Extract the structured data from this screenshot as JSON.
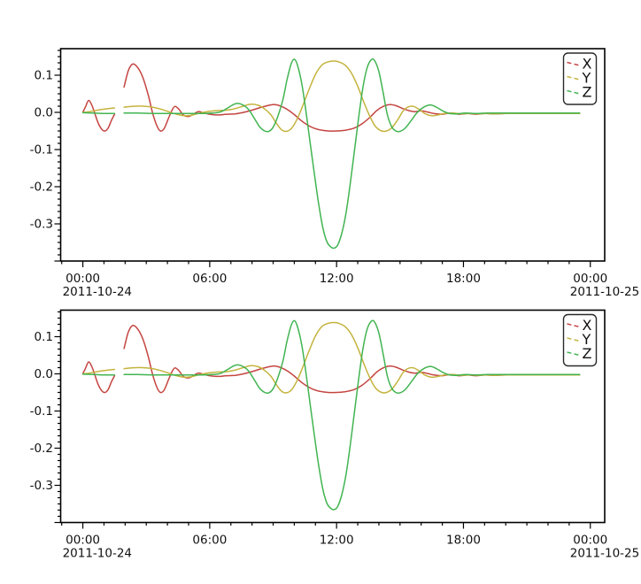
{
  "figure": {
    "background": "#ffffff",
    "frame_color": "#000000",
    "tick_color": "#000000"
  },
  "chart_data": {
    "type": "line",
    "title": "",
    "grid": false,
    "panel_count": 2,
    "panels": [
      {
        "id": "top-panel"
      },
      {
        "id": "bottom-panel",
        "note": "identical data to top panel"
      }
    ],
    "legend": {
      "position": "upper right",
      "entries": [
        {
          "label": "X",
          "color": "#c44440"
        },
        {
          "label": "Y",
          "color": "#c4b33d"
        },
        {
          "label": "Z",
          "color": "#41b451"
        }
      ]
    },
    "x_axis": {
      "unit": "hours since 2011-10-24 00:00",
      "xlim_hours": [
        -1.05,
        24.68
      ],
      "minor_tick_every_hours": 1,
      "major_ticks": [
        {
          "hour": 0,
          "label": "00:00",
          "date": "2011-10-24"
        },
        {
          "hour": 6,
          "label": "06:00"
        },
        {
          "hour": 12,
          "label": "12:00"
        },
        {
          "hour": 18,
          "label": "18:00"
        },
        {
          "hour": 24,
          "label": "00:00",
          "date": "2011-10-25"
        }
      ]
    },
    "y_axis": {
      "ylim": [
        -0.4,
        0.1714
      ],
      "minor_divisions_per_major": 6,
      "major_ticks": [
        {
          "value": 0.1,
          "label": "0.1"
        },
        {
          "value": 0.0,
          "label": "0.0"
        },
        {
          "value": -0.1,
          "label": "-0.1"
        },
        {
          "value": -0.2,
          "label": "-0.2"
        },
        {
          "value": -0.3,
          "label": "-0.3"
        }
      ]
    },
    "data_gap_hours": [
      1.5,
      1.95
    ],
    "series": [
      {
        "name": "X",
        "color": "#c44440",
        "segments": [
          [
            [
              0,
              0.001
            ],
            [
              0.12,
              0.014
            ],
            [
              0.27,
              0.032
            ],
            [
              0.42,
              0.02
            ],
            [
              0.55,
              0.0
            ],
            [
              0.72,
              -0.028
            ],
            [
              0.9,
              -0.046
            ],
            [
              1.05,
              -0.05
            ],
            [
              1.2,
              -0.042
            ],
            [
              1.35,
              -0.022
            ],
            [
              1.5,
              -0.005
            ]
          ],
          [
            [
              1.95,
              0.068
            ],
            [
              2.15,
              0.112
            ],
            [
              2.36,
              0.13
            ],
            [
              2.6,
              0.12
            ],
            [
              2.85,
              0.092
            ],
            [
              3.1,
              0.045
            ],
            [
              3.3,
              -0.002
            ],
            [
              3.5,
              -0.036
            ],
            [
              3.67,
              -0.05
            ],
            [
              3.85,
              -0.043
            ],
            [
              4.05,
              -0.016
            ],
            [
              4.2,
              0.004
            ],
            [
              4.35,
              0.016
            ],
            [
              4.55,
              0.008
            ],
            [
              4.75,
              -0.007
            ],
            [
              5.0,
              -0.011
            ],
            [
              5.25,
              -0.004
            ],
            [
              5.45,
              0.002
            ],
            [
              5.7,
              -0.001
            ],
            [
              6.0,
              -0.005
            ],
            [
              6.4,
              -0.007
            ],
            [
              6.8,
              -0.005
            ],
            [
              7.2,
              -0.004
            ],
            [
              7.6,
              0.0
            ],
            [
              8.0,
              0.006
            ],
            [
              8.4,
              0.013
            ],
            [
              8.8,
              0.019
            ],
            [
              9.1,
              0.021
            ],
            [
              9.4,
              0.016
            ],
            [
              9.7,
              0.007
            ],
            [
              10.0,
              -0.006
            ],
            [
              10.3,
              -0.021
            ],
            [
              10.6,
              -0.033
            ],
            [
              10.9,
              -0.042
            ],
            [
              11.2,
              -0.047
            ],
            [
              11.6,
              -0.05
            ],
            [
              12.0,
              -0.05
            ],
            [
              12.4,
              -0.048
            ],
            [
              12.8,
              -0.043
            ],
            [
              13.2,
              -0.031
            ],
            [
              13.6,
              -0.012
            ],
            [
              13.9,
              0.005
            ],
            [
              14.2,
              0.016
            ],
            [
              14.5,
              0.021
            ],
            [
              14.8,
              0.018
            ],
            [
              15.1,
              0.011
            ],
            [
              15.4,
              0.005
            ],
            [
              15.7,
              0.002
            ],
            [
              16.0,
              0.004
            ],
            [
              16.3,
              0.001
            ],
            [
              16.6,
              -0.003
            ],
            [
              17.0,
              -0.005
            ],
            [
              17.4,
              -0.002
            ],
            [
              17.8,
              -0.005
            ],
            [
              18.2,
              -0.003
            ],
            [
              18.6,
              -0.005
            ],
            [
              19.0,
              -0.003
            ],
            [
              19.5,
              -0.004
            ],
            [
              20.0,
              -0.003
            ],
            [
              21.0,
              -0.003
            ],
            [
              22.0,
              -0.003
            ],
            [
              23.0,
              -0.003
            ],
            [
              23.5,
              -0.003
            ]
          ]
        ]
      },
      {
        "name": "Y",
        "color": "#c4b33d",
        "segments": [
          [
            [
              0,
              0.0
            ],
            [
              0.3,
              0.002
            ],
            [
              0.6,
              0.005
            ],
            [
              0.9,
              0.008
            ],
            [
              1.2,
              0.01
            ],
            [
              1.5,
              0.012
            ]
          ],
          [
            [
              1.95,
              0.014
            ],
            [
              2.3,
              0.016
            ],
            [
              2.7,
              0.017
            ],
            [
              3.0,
              0.016
            ],
            [
              3.3,
              0.014
            ],
            [
              3.6,
              0.01
            ],
            [
              3.9,
              0.005
            ],
            [
              4.2,
              -0.001
            ],
            [
              4.5,
              -0.006
            ],
            [
              4.8,
              -0.009
            ],
            [
              5.1,
              -0.008
            ],
            [
              5.4,
              -0.004
            ],
            [
              5.7,
              0.0
            ],
            [
              6.0,
              0.003
            ],
            [
              6.4,
              0.005
            ],
            [
              6.8,
              0.006
            ],
            [
              7.2,
              0.01
            ],
            [
              7.6,
              0.017
            ],
            [
              7.95,
              0.022
            ],
            [
              8.3,
              0.019
            ],
            [
              8.6,
              0.009
            ],
            [
              8.9,
              -0.007
            ],
            [
              9.15,
              -0.029
            ],
            [
              9.4,
              -0.047
            ],
            [
              9.65,
              -0.051
            ],
            [
              9.9,
              -0.041
            ],
            [
              10.15,
              -0.016
            ],
            [
              10.4,
              0.018
            ],
            [
              10.7,
              0.062
            ],
            [
              11.0,
              0.102
            ],
            [
              11.3,
              0.127
            ],
            [
              11.6,
              0.136
            ],
            [
              11.85,
              0.138
            ],
            [
              12.1,
              0.136
            ],
            [
              12.4,
              0.127
            ],
            [
              12.7,
              0.106
            ],
            [
              13.0,
              0.07
            ],
            [
              13.3,
              0.026
            ],
            [
              13.55,
              -0.008
            ],
            [
              13.8,
              -0.035
            ],
            [
              14.05,
              -0.048
            ],
            [
              14.3,
              -0.051
            ],
            [
              14.6,
              -0.042
            ],
            [
              14.9,
              -0.019
            ],
            [
              15.15,
              0.004
            ],
            [
              15.4,
              0.015
            ],
            [
              15.65,
              0.016
            ],
            [
              15.9,
              0.008
            ],
            [
              16.2,
              -0.004
            ],
            [
              16.5,
              -0.009
            ],
            [
              16.8,
              -0.007
            ],
            [
              17.1,
              -0.003
            ],
            [
              17.5,
              -0.002
            ],
            [
              17.9,
              -0.004
            ],
            [
              18.3,
              -0.003
            ],
            [
              18.7,
              -0.004
            ],
            [
              19.1,
              -0.003
            ],
            [
              19.5,
              -0.004
            ],
            [
              20.0,
              -0.003
            ],
            [
              21.0,
              -0.003
            ],
            [
              22.0,
              -0.003
            ],
            [
              23.0,
              -0.003
            ],
            [
              23.5,
              -0.003
            ]
          ]
        ]
      },
      {
        "name": "Z",
        "color": "#41b451",
        "segments": [
          [
            [
              0,
              -0.001
            ],
            [
              0.5,
              -0.002
            ],
            [
              1.0,
              -0.003
            ],
            [
              1.5,
              -0.003
            ]
          ],
          [
            [
              1.95,
              -0.002
            ],
            [
              2.6,
              -0.002
            ],
            [
              3.4,
              -0.003
            ],
            [
              4.2,
              -0.003
            ],
            [
              5.0,
              -0.003
            ],
            [
              5.7,
              -0.003
            ],
            [
              6.1,
              -0.002
            ],
            [
              6.5,
              0.001
            ],
            [
              6.85,
              0.012
            ],
            [
              7.15,
              0.022
            ],
            [
              7.35,
              0.024
            ],
            [
              7.6,
              0.019
            ],
            [
              7.85,
              0.007
            ],
            [
              8.1,
              -0.015
            ],
            [
              8.35,
              -0.038
            ],
            [
              8.6,
              -0.05
            ],
            [
              8.8,
              -0.051
            ],
            [
              9.0,
              -0.04
            ],
            [
              9.2,
              -0.014
            ],
            [
              9.45,
              0.032
            ],
            [
              9.65,
              0.086
            ],
            [
              9.85,
              0.13
            ],
            [
              10.0,
              0.143
            ],
            [
              10.15,
              0.127
            ],
            [
              10.35,
              0.078
            ],
            [
              10.55,
              0.004
            ],
            [
              10.75,
              -0.082
            ],
            [
              10.95,
              -0.166
            ],
            [
              11.15,
              -0.246
            ],
            [
              11.35,
              -0.31
            ],
            [
              11.55,
              -0.349
            ],
            [
              11.75,
              -0.363
            ],
            [
              11.9,
              -0.365
            ],
            [
              12.05,
              -0.357
            ],
            [
              12.25,
              -0.325
            ],
            [
              12.45,
              -0.27
            ],
            [
              12.65,
              -0.19
            ],
            [
              12.85,
              -0.1
            ],
            [
              13.05,
              -0.012
            ],
            [
              13.25,
              0.068
            ],
            [
              13.45,
              0.121
            ],
            [
              13.65,
              0.142
            ],
            [
              13.8,
              0.139
            ],
            [
              14.0,
              0.11
            ],
            [
              14.2,
              0.054
            ],
            [
              14.4,
              -0.006
            ],
            [
              14.6,
              -0.038
            ],
            [
              14.8,
              -0.05
            ],
            [
              15.0,
              -0.051
            ],
            [
              15.25,
              -0.042
            ],
            [
              15.55,
              -0.02
            ],
            [
              15.85,
              0.002
            ],
            [
              16.15,
              0.015
            ],
            [
              16.45,
              0.02
            ],
            [
              16.75,
              0.013
            ],
            [
              17.05,
              0.003
            ],
            [
              17.35,
              -0.003
            ],
            [
              17.7,
              -0.004
            ],
            [
              18.1,
              -0.002
            ],
            [
              18.6,
              -0.003
            ],
            [
              19.1,
              -0.002
            ],
            [
              19.6,
              -0.002
            ],
            [
              20.2,
              -0.002
            ],
            [
              21.0,
              -0.002
            ],
            [
              22.0,
              -0.002
            ],
            [
              23.0,
              -0.002
            ],
            [
              23.5,
              -0.002
            ]
          ]
        ]
      }
    ]
  }
}
